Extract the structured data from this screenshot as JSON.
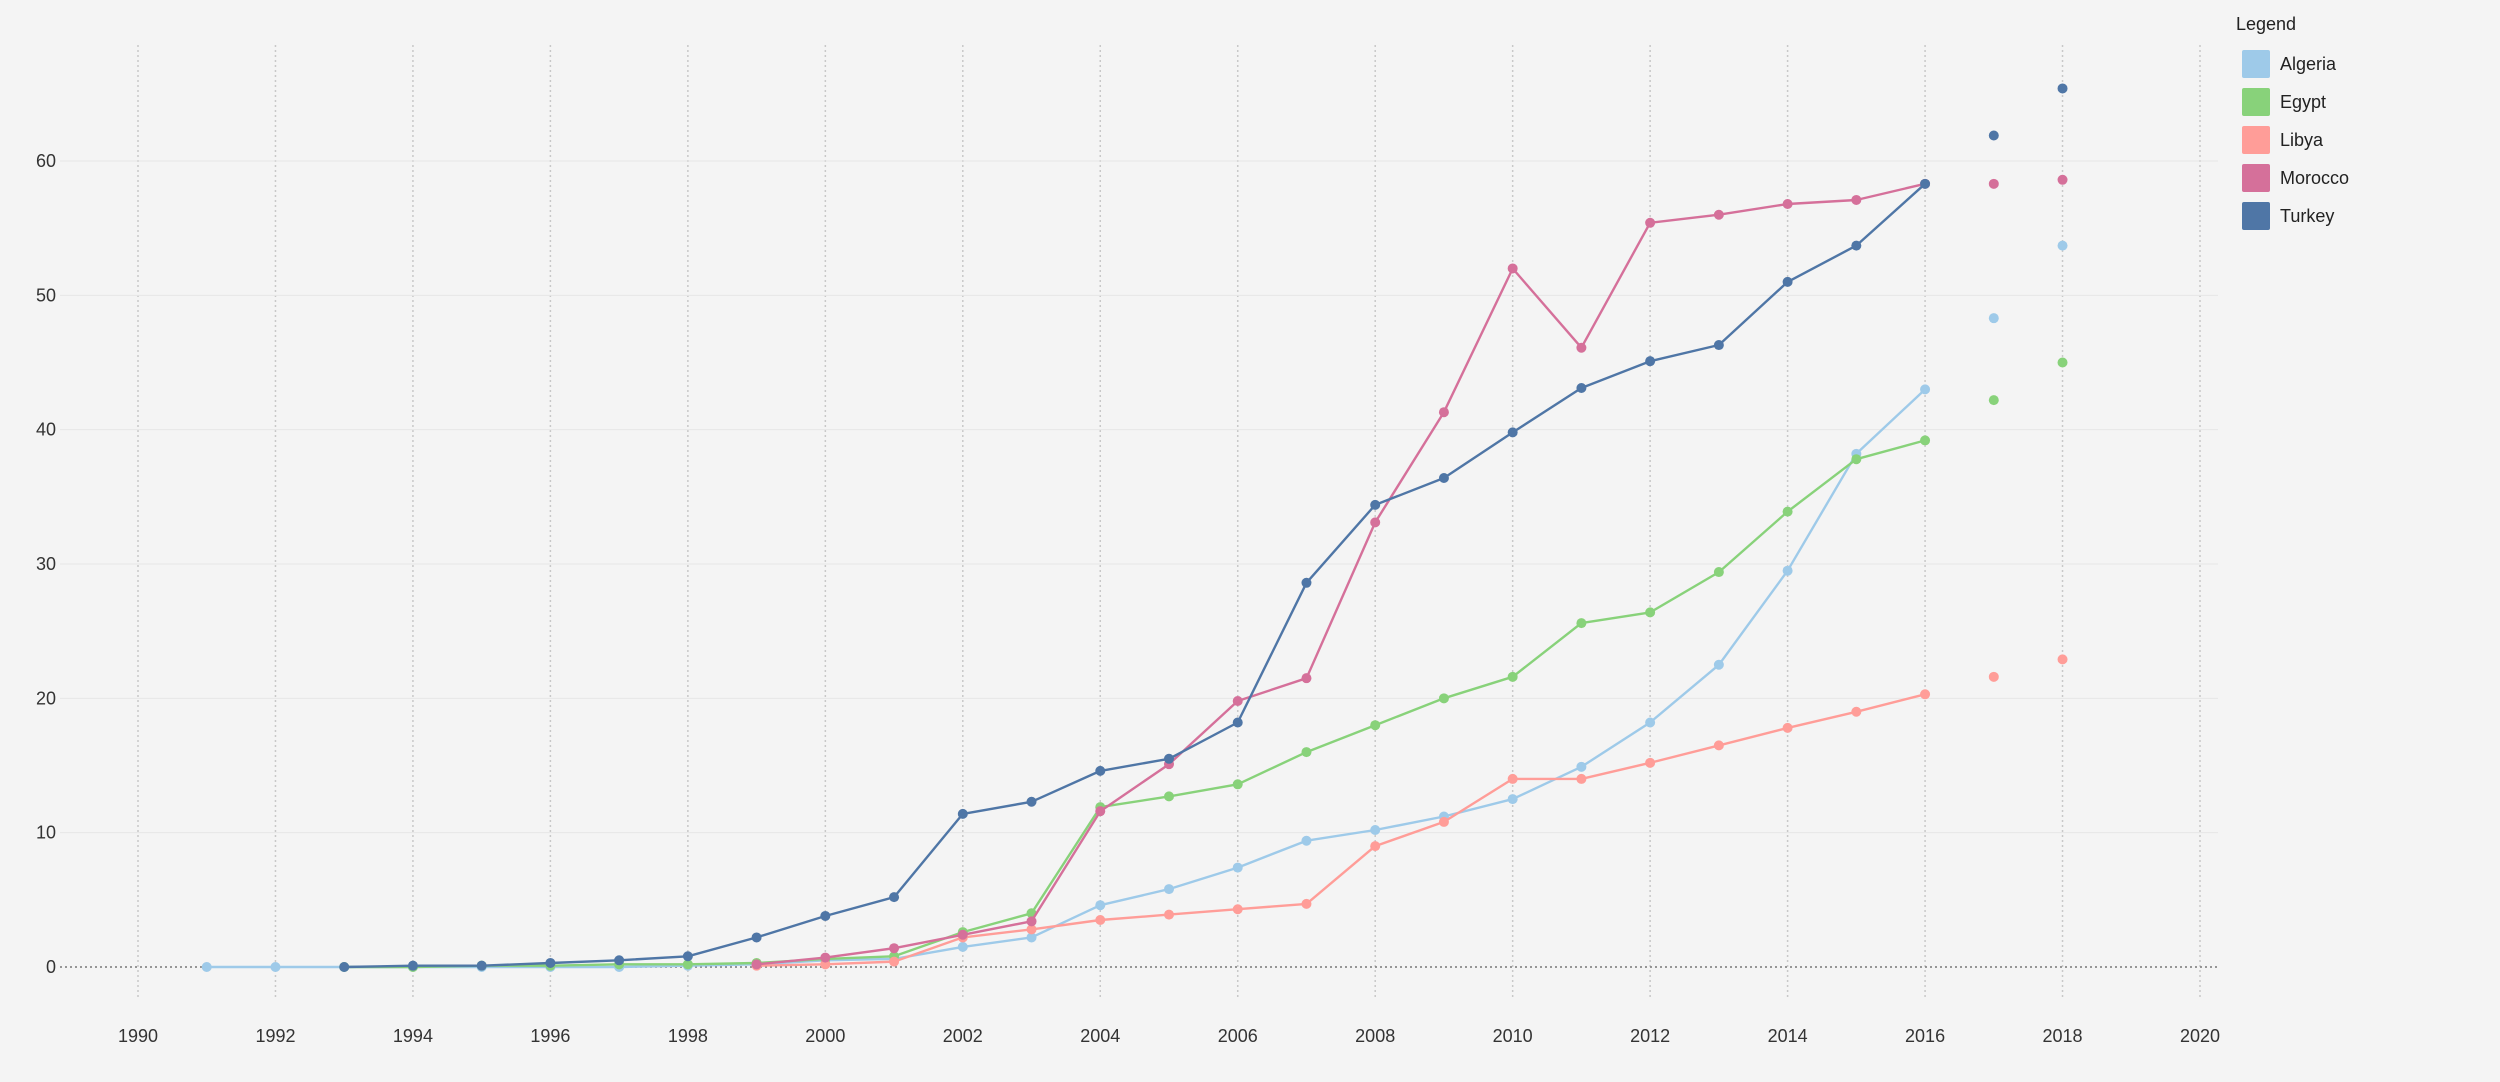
{
  "chart_data": {
    "type": "line",
    "title": "",
    "xlabel": "",
    "ylabel": "",
    "xlim": [
      1989,
      2020.3
    ],
    "ylim": [
      -2,
      69
    ],
    "x_ticks": [
      1990,
      1992,
      1994,
      1996,
      1998,
      2000,
      2002,
      2004,
      2006,
      2008,
      2010,
      2012,
      2014,
      2016,
      2018,
      2020
    ],
    "y_ticks": [
      0,
      10,
      20,
      30,
      40,
      50,
      60
    ],
    "grid": true,
    "legend_position": "top-right",
    "series": [
      {
        "name": "Algeria",
        "color": "#9ecae9",
        "x": [
          1991,
          1992,
          1993,
          1994,
          1995,
          1996,
          1997,
          1998,
          1999,
          2000,
          2001,
          2002,
          2003,
          2004,
          2005,
          2006,
          2007,
          2008,
          2009,
          2010,
          2011,
          2012,
          2013,
          2014,
          2015,
          2016
        ],
        "y": [
          0,
          0,
          0,
          0,
          0,
          0,
          0,
          0.1,
          0.2,
          0.5,
          0.6,
          1.5,
          2.2,
          4.6,
          5.8,
          7.4,
          9.4,
          10.2,
          11.2,
          12.5,
          14.9,
          18.2,
          22.5,
          29.5,
          38.2,
          43.0
        ],
        "projected_x": [
          2017,
          2018
        ],
        "projected_y": [
          48.3,
          53.7
        ]
      },
      {
        "name": "Egypt",
        "color": "#88d27a",
        "x": [
          1993,
          1994,
          1995,
          1996,
          1997,
          1998,
          1999,
          2000,
          2001,
          2002,
          2003,
          2004,
          2005,
          2006,
          2007,
          2008,
          2009,
          2010,
          2011,
          2012,
          2013,
          2014,
          2015,
          2016
        ],
        "y": [
          0,
          0,
          0.1,
          0.1,
          0.2,
          0.2,
          0.3,
          0.6,
          0.8,
          2.6,
          4.0,
          11.9,
          12.7,
          13.6,
          16.0,
          18.0,
          20.0,
          21.6,
          25.6,
          26.4,
          29.4,
          33.9,
          37.8,
          39.2
        ],
        "projected_x": [
          2017,
          2018
        ],
        "projected_y": [
          42.2,
          45.0
        ]
      },
      {
        "name": "Libya",
        "color": "#ff9d98",
        "x": [
          1999,
          2000,
          2001,
          2002,
          2003,
          2004,
          2005,
          2006,
          2007,
          2008,
          2009,
          2010,
          2011,
          2012,
          2013,
          2014,
          2015,
          2016
        ],
        "y": [
          0.1,
          0.2,
          0.4,
          2.2,
          2.8,
          3.5,
          3.9,
          4.3,
          4.7,
          9.0,
          10.8,
          14.0,
          14.0,
          15.2,
          16.5,
          17.8,
          19.0,
          20.3
        ],
        "projected_x": [
          2017,
          2018
        ],
        "projected_y": [
          21.6,
          22.9
        ]
      },
      {
        "name": "Morocco",
        "color": "#d5709a",
        "x": [
          1999,
          2000,
          2001,
          2002,
          2003,
          2004,
          2005,
          2006,
          2007,
          2008,
          2009,
          2010,
          2011,
          2012,
          2013,
          2014,
          2015,
          2016
        ],
        "y": [
          0.2,
          0.7,
          1.4,
          2.4,
          3.4,
          11.6,
          15.1,
          19.8,
          21.5,
          33.1,
          41.3,
          52.0,
          46.1,
          55.4,
          56.0,
          56.8,
          57.1,
          58.3
        ],
        "projected_x": [
          2017,
          2018
        ],
        "projected_y": [
          58.3,
          58.6
        ]
      },
      {
        "name": "Turkey",
        "color": "#4f76a6",
        "x": [
          1993,
          1994,
          1995,
          1996,
          1997,
          1998,
          1999,
          2000,
          2001,
          2002,
          2003,
          2004,
          2005,
          2006,
          2007,
          2008,
          2009,
          2010,
          2011,
          2012,
          2013,
          2014,
          2015,
          2016
        ],
        "y": [
          0,
          0.1,
          0.1,
          0.3,
          0.5,
          0.8,
          2.2,
          3.8,
          5.2,
          11.4,
          12.3,
          14.6,
          15.5,
          18.2,
          28.6,
          34.4,
          36.4,
          39.8,
          43.1,
          45.1,
          46.3,
          51.0,
          53.7,
          58.3
        ],
        "projected_x": [
          2017,
          2018
        ],
        "projected_y": [
          61.9,
          65.4
        ]
      }
    ]
  },
  "legend": {
    "title": "Legend"
  }
}
